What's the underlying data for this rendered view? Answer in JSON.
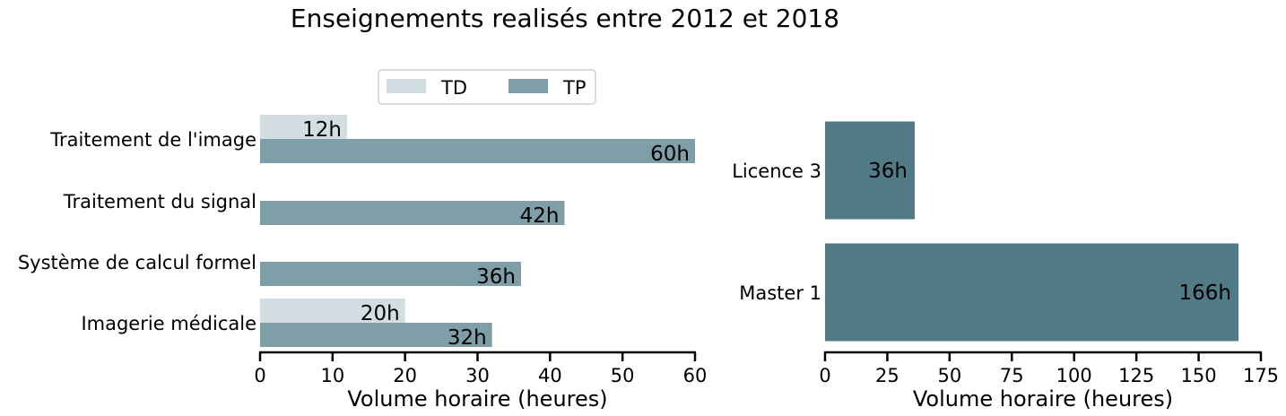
{
  "title": "Enseignements realisés entre 2012 et 2018",
  "colors": {
    "td": "#d3dee3",
    "tp": "#7e9fa8",
    "level": "#507a86"
  },
  "chart_data": [
    {
      "type": "bar",
      "orientation": "horizontal",
      "categories": [
        "Traitement de l'image",
        "Traitement du signal",
        "Système de calcul formel",
        "Imagerie médicale"
      ],
      "series": [
        {
          "name": "TD",
          "values": [
            12,
            0,
            0,
            20
          ],
          "labels": [
            "12h",
            "",
            "",
            "20h"
          ]
        },
        {
          "name": "TP",
          "values": [
            60,
            42,
            36,
            32
          ],
          "labels": [
            "60h",
            "42h",
            "36h",
            "32h"
          ]
        }
      ],
      "xlabel": "Volume horaire (heures)",
      "xlim": [
        0,
        60
      ],
      "xticks": [
        0,
        10,
        20,
        30,
        40,
        50,
        60
      ],
      "legend": {
        "position": "top-center",
        "entries": [
          "TD",
          "TP"
        ]
      },
      "grid": false
    },
    {
      "type": "bar",
      "orientation": "horizontal",
      "categories": [
        "Licence 3",
        "Master 1"
      ],
      "values": [
        36,
        166
      ],
      "labels": [
        "36h",
        "166h"
      ],
      "xlabel": "Volume horaire (heures)",
      "xlim": [
        0,
        175
      ],
      "xticks": [
        0,
        25,
        50,
        75,
        100,
        125,
        150,
        175
      ],
      "grid": false
    }
  ]
}
